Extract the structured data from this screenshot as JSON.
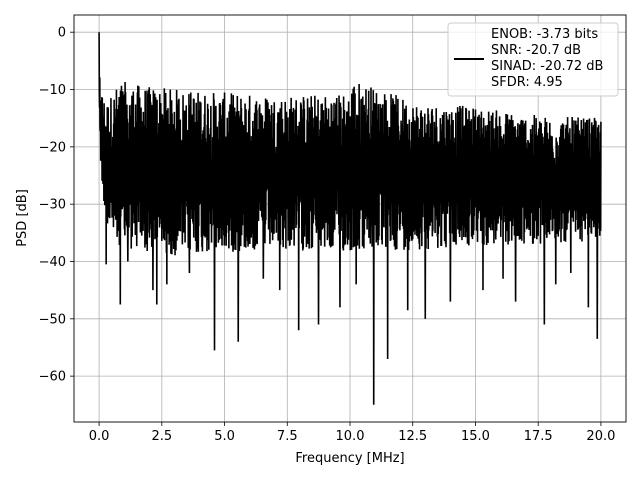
{
  "chart_data": {
    "type": "line",
    "xlabel": "Frequency [MHz]",
    "ylabel": "PSD [dB]",
    "xlim": [
      -1.0,
      21.0
    ],
    "ylim": [
      -68.0,
      3.0
    ],
    "x_ticks": [
      0.0,
      2.5,
      5.0,
      7.5,
      10.0,
      12.5,
      15.0,
      17.5,
      20.0
    ],
    "x_tick_labels": [
      "0.0",
      "2.5",
      "5.0",
      "7.5",
      "10.0",
      "12.5",
      "15.0",
      "17.5",
      "20.0"
    ],
    "y_ticks": [
      0,
      -10,
      -20,
      -30,
      -40,
      -50,
      -60
    ],
    "y_tick_labels": [
      "0",
      "−10",
      "−20",
      "−30",
      "−40",
      "−50",
      "−60"
    ],
    "grid": true,
    "legend_position": "top-right",
    "legend_lines": [
      "ENOB: -3.73 bits",
      "SNR: -20.7 dB",
      "SINAD: -20.72 dB",
      "SFDR: 4.95"
    ],
    "line_color": "#000000",
    "series": [
      {
        "x_start": 0.0,
        "x_end": 20.0,
        "peak_points": [
          [
            0.0,
            0.0
          ],
          [
            0.03,
            -6.0
          ],
          [
            0.08,
            -9.0
          ],
          [
            0.15,
            -11.0
          ],
          [
            0.3,
            -12.0
          ],
          [
            0.85,
            -8.5
          ],
          [
            2.0,
            -9.5
          ],
          [
            3.5,
            -10.0
          ],
          [
            5.0,
            -10.5
          ],
          [
            7.5,
            -11.0
          ],
          [
            10.0,
            -10.5
          ],
          [
            10.05,
            -8.0
          ],
          [
            12.5,
            -12.0
          ],
          [
            15.0,
            -13.0
          ],
          [
            17.5,
            -14.5
          ],
          [
            20.0,
            -15.0
          ]
        ],
        "trough_points": [
          [
            0.0,
            -20.0
          ],
          [
            0.1,
            -26.0
          ],
          [
            0.3,
            -35.0
          ],
          [
            1.0,
            -38.0
          ],
          [
            3.0,
            -39.0
          ],
          [
            5.0,
            -38.5
          ],
          [
            7.5,
            -38.0
          ],
          [
            10.0,
            -38.5
          ],
          [
            12.5,
            -38.0
          ],
          [
            15.0,
            -37.5
          ],
          [
            17.5,
            -37.0
          ],
          [
            20.0,
            -36.5
          ]
        ],
        "spikes": [
          [
            0.28,
            -40.5
          ],
          [
            0.85,
            -47.5
          ],
          [
            1.15,
            -40.0
          ],
          [
            2.15,
            -45.0
          ],
          [
            2.3,
            -47.5
          ],
          [
            2.7,
            -44.0
          ],
          [
            3.6,
            -42.0
          ],
          [
            4.6,
            -55.5
          ],
          [
            5.55,
            -54.0
          ],
          [
            6.55,
            -43.0
          ],
          [
            7.2,
            -45.0
          ],
          [
            7.95,
            -52.0
          ],
          [
            8.75,
            -51.0
          ],
          [
            9.6,
            -48.0
          ],
          [
            10.25,
            -44.0
          ],
          [
            10.95,
            -65.0
          ],
          [
            11.5,
            -57.0
          ],
          [
            12.3,
            -48.5
          ],
          [
            13.0,
            -50.0
          ],
          [
            14.0,
            -47.0
          ],
          [
            15.3,
            -45.0
          ],
          [
            16.1,
            -43.0
          ],
          [
            16.6,
            -47.0
          ],
          [
            17.75,
            -51.0
          ],
          [
            18.2,
            -44.0
          ],
          [
            18.8,
            -42.0
          ],
          [
            19.5,
            -48.0
          ],
          [
            19.85,
            -53.5
          ]
        ]
      }
    ]
  }
}
